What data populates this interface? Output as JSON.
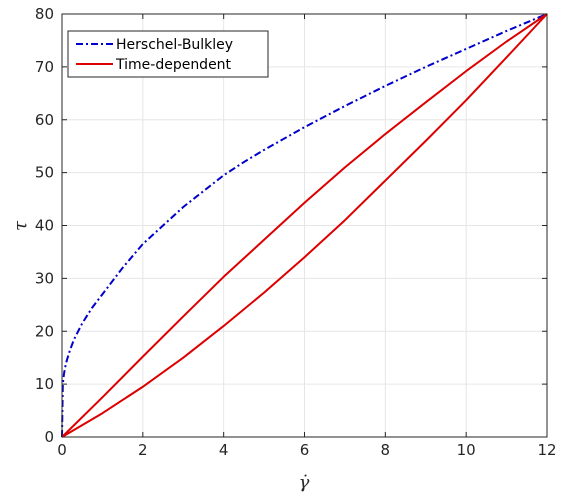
{
  "chart_data": {
    "type": "line",
    "title": "",
    "xlabel": "γ̇",
    "ylabel": "τ",
    "xlim": [
      0,
      12
    ],
    "ylim": [
      0,
      80
    ],
    "xticks": [
      "0",
      "2",
      "4",
      "6",
      "8",
      "10",
      "12"
    ],
    "yticks": [
      "0",
      "10",
      "20",
      "30",
      "40",
      "50",
      "60",
      "70",
      "80"
    ],
    "grid": true,
    "legend_position": "top-left",
    "legend": [
      "Herschel-Bulkley",
      "Time-dependent"
    ],
    "series": [
      {
        "name": "Herschel-Bulkley",
        "color": "#0000cc",
        "style": "dash-dot",
        "x": [
          0,
          0.02,
          0.05,
          0.1,
          0.2,
          0.3,
          0.5,
          0.75,
          1,
          1.5,
          2,
          2.5,
          3,
          3.5,
          4,
          4.5,
          5,
          6,
          7,
          8,
          9,
          10,
          11,
          12
        ],
        "y": [
          0,
          10,
          12,
          14,
          16.5,
          18.5,
          21.5,
          24.5,
          27,
          32,
          36.5,
          40,
          43.5,
          46.5,
          49.5,
          52,
          54.3,
          58.6,
          62.6,
          66.4,
          70,
          73.4,
          76.8,
          80
        ]
      },
      {
        "name": "Time-dependent",
        "color": "#dd0000",
        "style": "solid",
        "x": [
          0,
          1,
          2,
          3,
          4,
          5,
          6,
          7,
          8,
          9,
          10,
          11,
          12
        ],
        "y": [
          0,
          7.5,
          15.2,
          22.8,
          30.3,
          37.3,
          44.3,
          51,
          57.3,
          63.3,
          69.2,
          74.8,
          80
        ]
      },
      {
        "name": "",
        "color": "#dd0000",
        "style": "solid",
        "x": [
          0,
          1,
          2,
          3,
          4,
          5,
          6,
          7,
          8,
          9,
          10,
          11,
          12
        ],
        "y": [
          0,
          4.5,
          9.5,
          15,
          21,
          27.3,
          34,
          41,
          48.5,
          56,
          63.7,
          71.8,
          80
        ]
      }
    ]
  }
}
